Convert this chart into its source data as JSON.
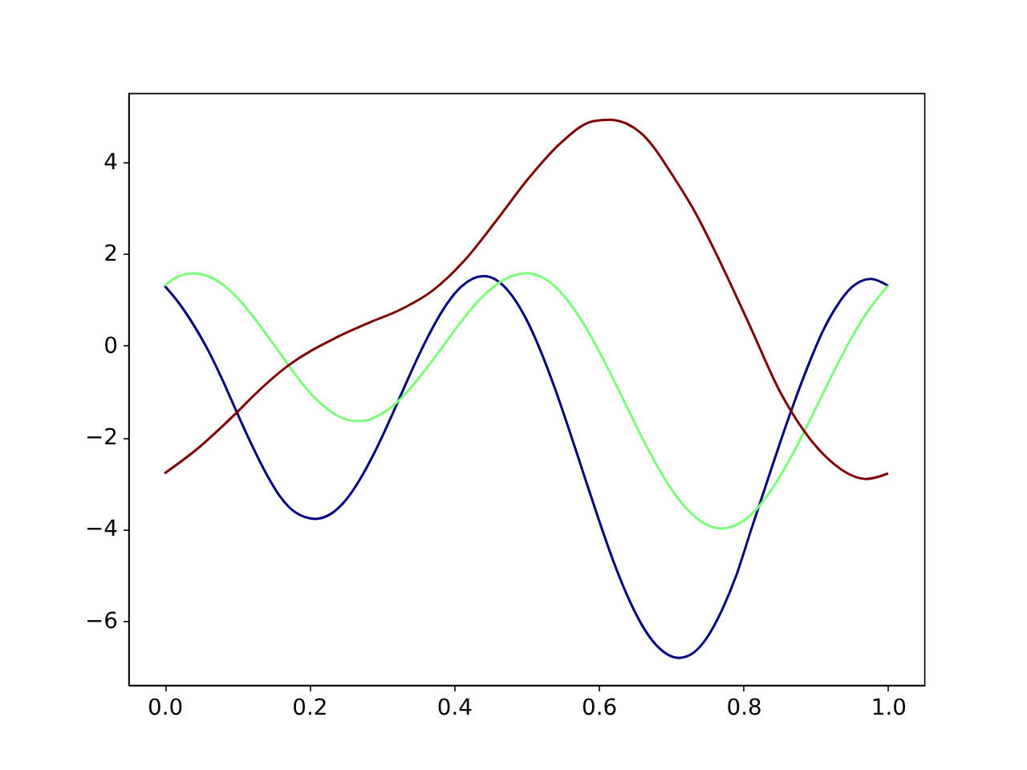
{
  "chart_data": {
    "type": "line",
    "xlim": [
      -0.05,
      1.05
    ],
    "ylim": [
      -7.4,
      5.5
    ],
    "xticks": [
      {
        "value": 0,
        "label": "0.0"
      },
      0.2,
      0.4,
      0.6,
      0.8,
      {
        "value": 1,
        "label": "1.0"
      }
    ],
    "yticks": [
      -6,
      -4,
      -2,
      0,
      2,
      4
    ],
    "grid": false,
    "line_style": "solid",
    "series": [
      {
        "color": "#00007f",
        "x": [
          0,
          0.02,
          0.04,
          0.06,
          0.08,
          0.1,
          0.12,
          0.14,
          0.16,
          0.18,
          0.208,
          0.23,
          0.25,
          0.27,
          0.29,
          0.31,
          0.33,
          0.35,
          0.37,
          0.39,
          0.41,
          0.441,
          0.46,
          0.48,
          0.5,
          0.52,
          0.54,
          0.56,
          0.58,
          0.6,
          0.62,
          0.64,
          0.66,
          0.68,
          0.711,
          0.73,
          0.75,
          0.77,
          0.79,
          0.81,
          0.83,
          0.85,
          0.87,
          0.89,
          0.91,
          0.93,
          0.95,
          0.976,
          1.0
        ],
        "values": [
          1.3,
          0.92,
          0.45,
          -0.1,
          -0.75,
          -1.46,
          -2.15,
          -2.78,
          -3.3,
          -3.63,
          -3.78,
          -3.67,
          -3.38,
          -2.92,
          -2.34,
          -1.67,
          -0.96,
          -0.26,
          0.37,
          0.9,
          1.28,
          1.51,
          1.41,
          1.09,
          0.57,
          -0.13,
          -0.96,
          -1.88,
          -2.84,
          -3.79,
          -4.69,
          -5.47,
          -6.1,
          -6.54,
          -6.81,
          -6.71,
          -6.36,
          -5.78,
          -5.02,
          -4.05,
          -3.1,
          -2.15,
          -1.25,
          -0.42,
          0.32,
          0.88,
          1.27,
          1.45,
          1.3
        ]
      },
      {
        "color": "#7dff7a",
        "x": [
          0,
          0.02,
          0.04,
          0.06,
          0.08,
          0.1,
          0.12,
          0.14,
          0.16,
          0.18,
          0.2,
          0.22,
          0.24,
          0.267,
          0.28,
          0.3,
          0.32,
          0.34,
          0.36,
          0.38,
          0.4,
          0.42,
          0.44,
          0.46,
          0.48,
          0.5,
          0.52,
          0.54,
          0.56,
          0.58,
          0.6,
          0.62,
          0.64,
          0.66,
          0.68,
          0.7,
          0.72,
          0.74,
          0.77,
          0.79,
          0.81,
          0.83,
          0.85,
          0.87,
          0.89,
          0.91,
          0.93,
          0.95,
          0.97,
          1.0
        ],
        "values": [
          1.3,
          1.51,
          1.57,
          1.51,
          1.33,
          1.05,
          0.68,
          0.26,
          -0.18,
          -0.62,
          -1.01,
          -1.32,
          -1.54,
          -1.65,
          -1.63,
          -1.49,
          -1.26,
          -0.93,
          -0.54,
          -0.12,
          0.31,
          0.72,
          1.07,
          1.34,
          1.51,
          1.57,
          1.5,
          1.28,
          0.92,
          0.45,
          -0.11,
          -0.73,
          -1.37,
          -2.01,
          -2.6,
          -3.12,
          -3.53,
          -3.82,
          -3.99,
          -3.91,
          -3.7,
          -3.34,
          -2.87,
          -2.31,
          -1.69,
          -1.05,
          -0.41,
          0.18,
          0.7,
          1.3
        ]
      },
      {
        "color": "#7f0000",
        "x": [
          0,
          0.044,
          0.1,
          0.126,
          0.17,
          0.237,
          0.282,
          0.326,
          0.37,
          0.415,
          0.459,
          0.504,
          0.548,
          0.593,
          0.615,
          0.659,
          0.704,
          0.733,
          0.77,
          0.808,
          0.852,
          0.867,
          0.911,
          0.97,
          1.0
        ],
        "values": [
          -2.79,
          -2.27,
          -1.46,
          -1.05,
          -0.45,
          0.17,
          0.49,
          0.78,
          1.19,
          1.86,
          2.73,
          3.66,
          4.42,
          4.89,
          4.92,
          4.62,
          3.66,
          2.91,
          1.75,
          0.46,
          -1.05,
          -1.46,
          -2.38,
          -2.91,
          -2.79
        ]
      }
    ]
  }
}
